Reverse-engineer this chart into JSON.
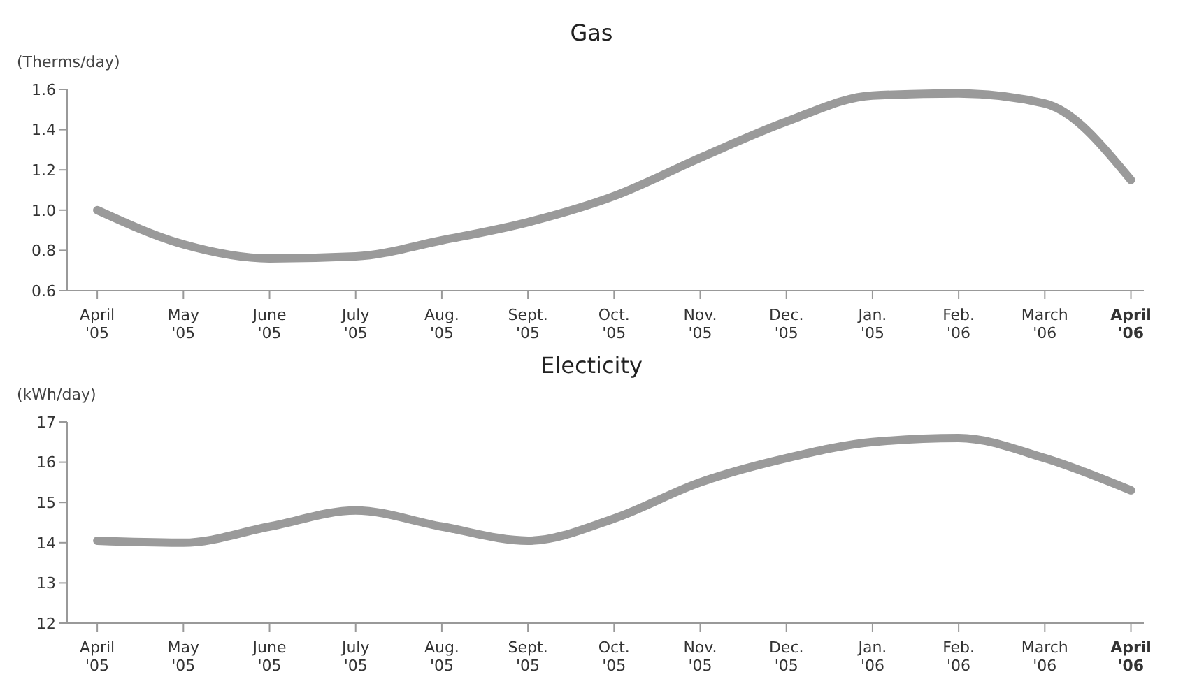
{
  "chart_data": [
    {
      "type": "line",
      "title": "Gas",
      "ylabel": "(Therms/day)",
      "categories": [
        "April\n'05",
        "May\n'05",
        "June\n'05",
        "July\n'05",
        "Aug.\n'05",
        "Sept.\n'05",
        "Oct.\n'05",
        "Nov.\n'05",
        "Dec.\n'05",
        "Jan.\n'05",
        "Feb.\n'06",
        "March\n'06",
        "April\n'06"
      ],
      "series": [
        {
          "color": "#9a9a9a",
          "values": [
            1.0,
            0.83,
            0.76,
            0.77,
            0.85,
            0.94,
            1.07,
            1.26,
            1.44,
            1.57,
            1.58,
            1.53,
            1.15
          ]
        }
      ],
      "ylim": [
        0.6,
        1.6
      ],
      "yticks": [
        {
          "value": 0.6,
          "label": "0.6"
        },
        {
          "value": 0.8,
          "label": "0.8"
        },
        {
          "value": 1.0,
          "label": "1.0"
        },
        {
          "value": 1.2,
          "label": "1.2"
        },
        {
          "value": 1.4,
          "label": "1.4"
        },
        {
          "value": 1.6,
          "label": "1.6"
        }
      ],
      "grid": false,
      "legend": false,
      "marker": "none",
      "line_style": "solid"
    },
    {
      "type": "line",
      "title": "Electicity",
      "ylabel": "(kWh/day)",
      "categories": [
        "April\n'05",
        "May\n'05",
        "June\n'05",
        "July\n'05",
        "Aug.\n'05",
        "Sept.\n'05",
        "Oct.\n'05",
        "Nov.\n'05",
        "Dec.\n'05",
        "Jan.\n'06",
        "Feb.\n'06",
        "March\n'06",
        "April\n'06"
      ],
      "series": [
        {
          "color": "#9a9a9a",
          "values": [
            14.05,
            14.0,
            14.4,
            14.8,
            14.4,
            14.05,
            14.6,
            15.5,
            16.1,
            16.5,
            16.6,
            16.1,
            15.3
          ]
        }
      ],
      "ylim": [
        12,
        17
      ],
      "yticks": [
        12,
        13,
        14,
        15,
        16,
        17
      ],
      "grid": false,
      "legend": false,
      "marker": "none",
      "line_style": "solid"
    }
  ]
}
